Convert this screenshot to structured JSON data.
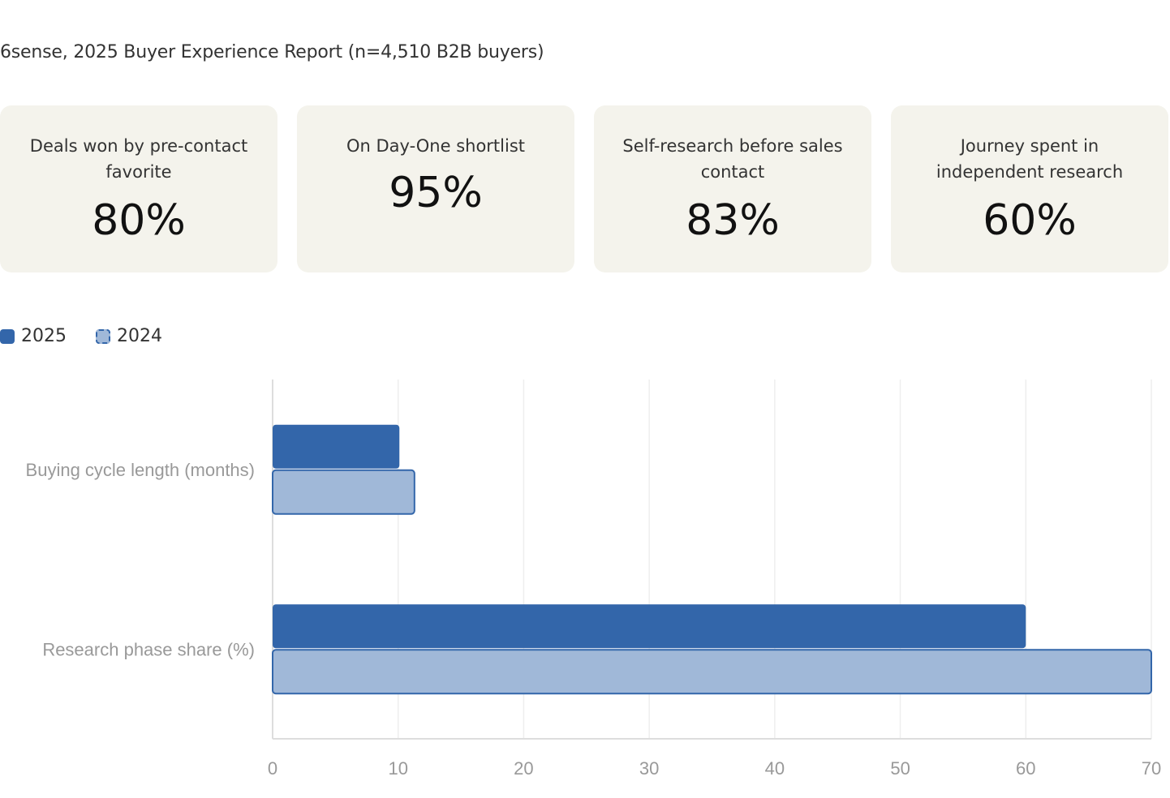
{
  "source": "6sense, 2025 Buyer Experience Report (n=4,510 B2B buyers)",
  "stats": [
    {
      "label": "Deals won by pre-contact favorite",
      "value": "80%"
    },
    {
      "label": "On Day-One shortlist",
      "value": "95%"
    },
    {
      "label": "Self-research before sales contact",
      "value": "83%"
    },
    {
      "label": "Journey spent in independent research",
      "value": "60%"
    }
  ],
  "chart_data": {
    "type": "bar",
    "orientation": "horizontal",
    "categories": [
      "Buying cycle length (months)",
      "Research phase share (%)"
    ],
    "series": [
      {
        "name": "2025",
        "values": [
          10.1,
          60
        ],
        "color": "#3366aa"
      },
      {
        "name": "2024",
        "values": [
          11.3,
          70
        ],
        "color": "#a0b8d8",
        "border": "#3366aa"
      }
    ],
    "xlim": [
      0,
      70
    ],
    "xticks": [
      "0",
      "10",
      "20",
      "30",
      "40",
      "50",
      "60",
      "70"
    ],
    "grid": true,
    "legend": "top-left"
  }
}
